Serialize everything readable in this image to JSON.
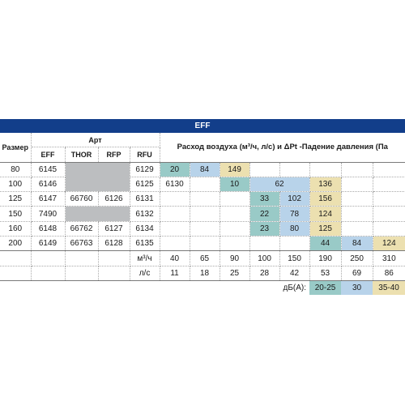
{
  "title": "EFF",
  "header": {
    "size_label": "Размер",
    "art_label": "Арт",
    "art_columns": [
      "EFF",
      "THOR",
      "RFP",
      "RFU"
    ],
    "flow_title": "Расход воздуха (м³/ч, л/с) и  ΔPt -Падение давления (Па"
  },
  "rows": [
    {
      "size": "80",
      "eff": "6145",
      "thor": "",
      "rfp": "",
      "rfu": "6129",
      "pressures": [
        "20",
        "84",
        "149"
      ]
    },
    {
      "size": "100",
      "eff": "6146",
      "thor": "",
      "rfp": "6125",
      "rfu": "6130",
      "pressures": [
        "10",
        "62",
        "136"
      ]
    },
    {
      "size": "125",
      "eff": "6147",
      "thor": "66760",
      "rfp": "6126",
      "rfu": "6131",
      "pressures": [
        "33",
        "102",
        "156"
      ]
    },
    {
      "size": "150",
      "eff": "7490",
      "thor": "",
      "rfp": "",
      "rfu": "6132",
      "pressures": [
        "22",
        "78",
        "124"
      ]
    },
    {
      "size": "160",
      "eff": "6148",
      "thor": "66762",
      "rfp": "6127",
      "rfu": "6134",
      "pressures": [
        "23",
        "80",
        "125"
      ]
    },
    {
      "size": "200",
      "eff": "6149",
      "thor": "66763",
      "rfp": "6128",
      "rfu": "6135",
      "pressures": [
        "44",
        "84",
        "124"
      ]
    }
  ],
  "flow": {
    "m3h_unit": "м³/ч",
    "m3h": [
      "40",
      "65",
      "90",
      "100",
      "150",
      "190",
      "250",
      "310"
    ],
    "ls_unit": "л/с",
    "ls": [
      "11",
      "18",
      "25",
      "28",
      "42",
      "53",
      "69",
      "86"
    ]
  },
  "noise": {
    "label": "дБ(А):",
    "levels": [
      "20-25",
      "30",
      "35-40"
    ]
  },
  "colors": {
    "header_bar": "#123e8a",
    "grey_cell": "#bcbec0",
    "noise_20_25": "#99cac7",
    "noise_30": "#b8d3ea",
    "noise_35_40": "#ece0b0"
  }
}
